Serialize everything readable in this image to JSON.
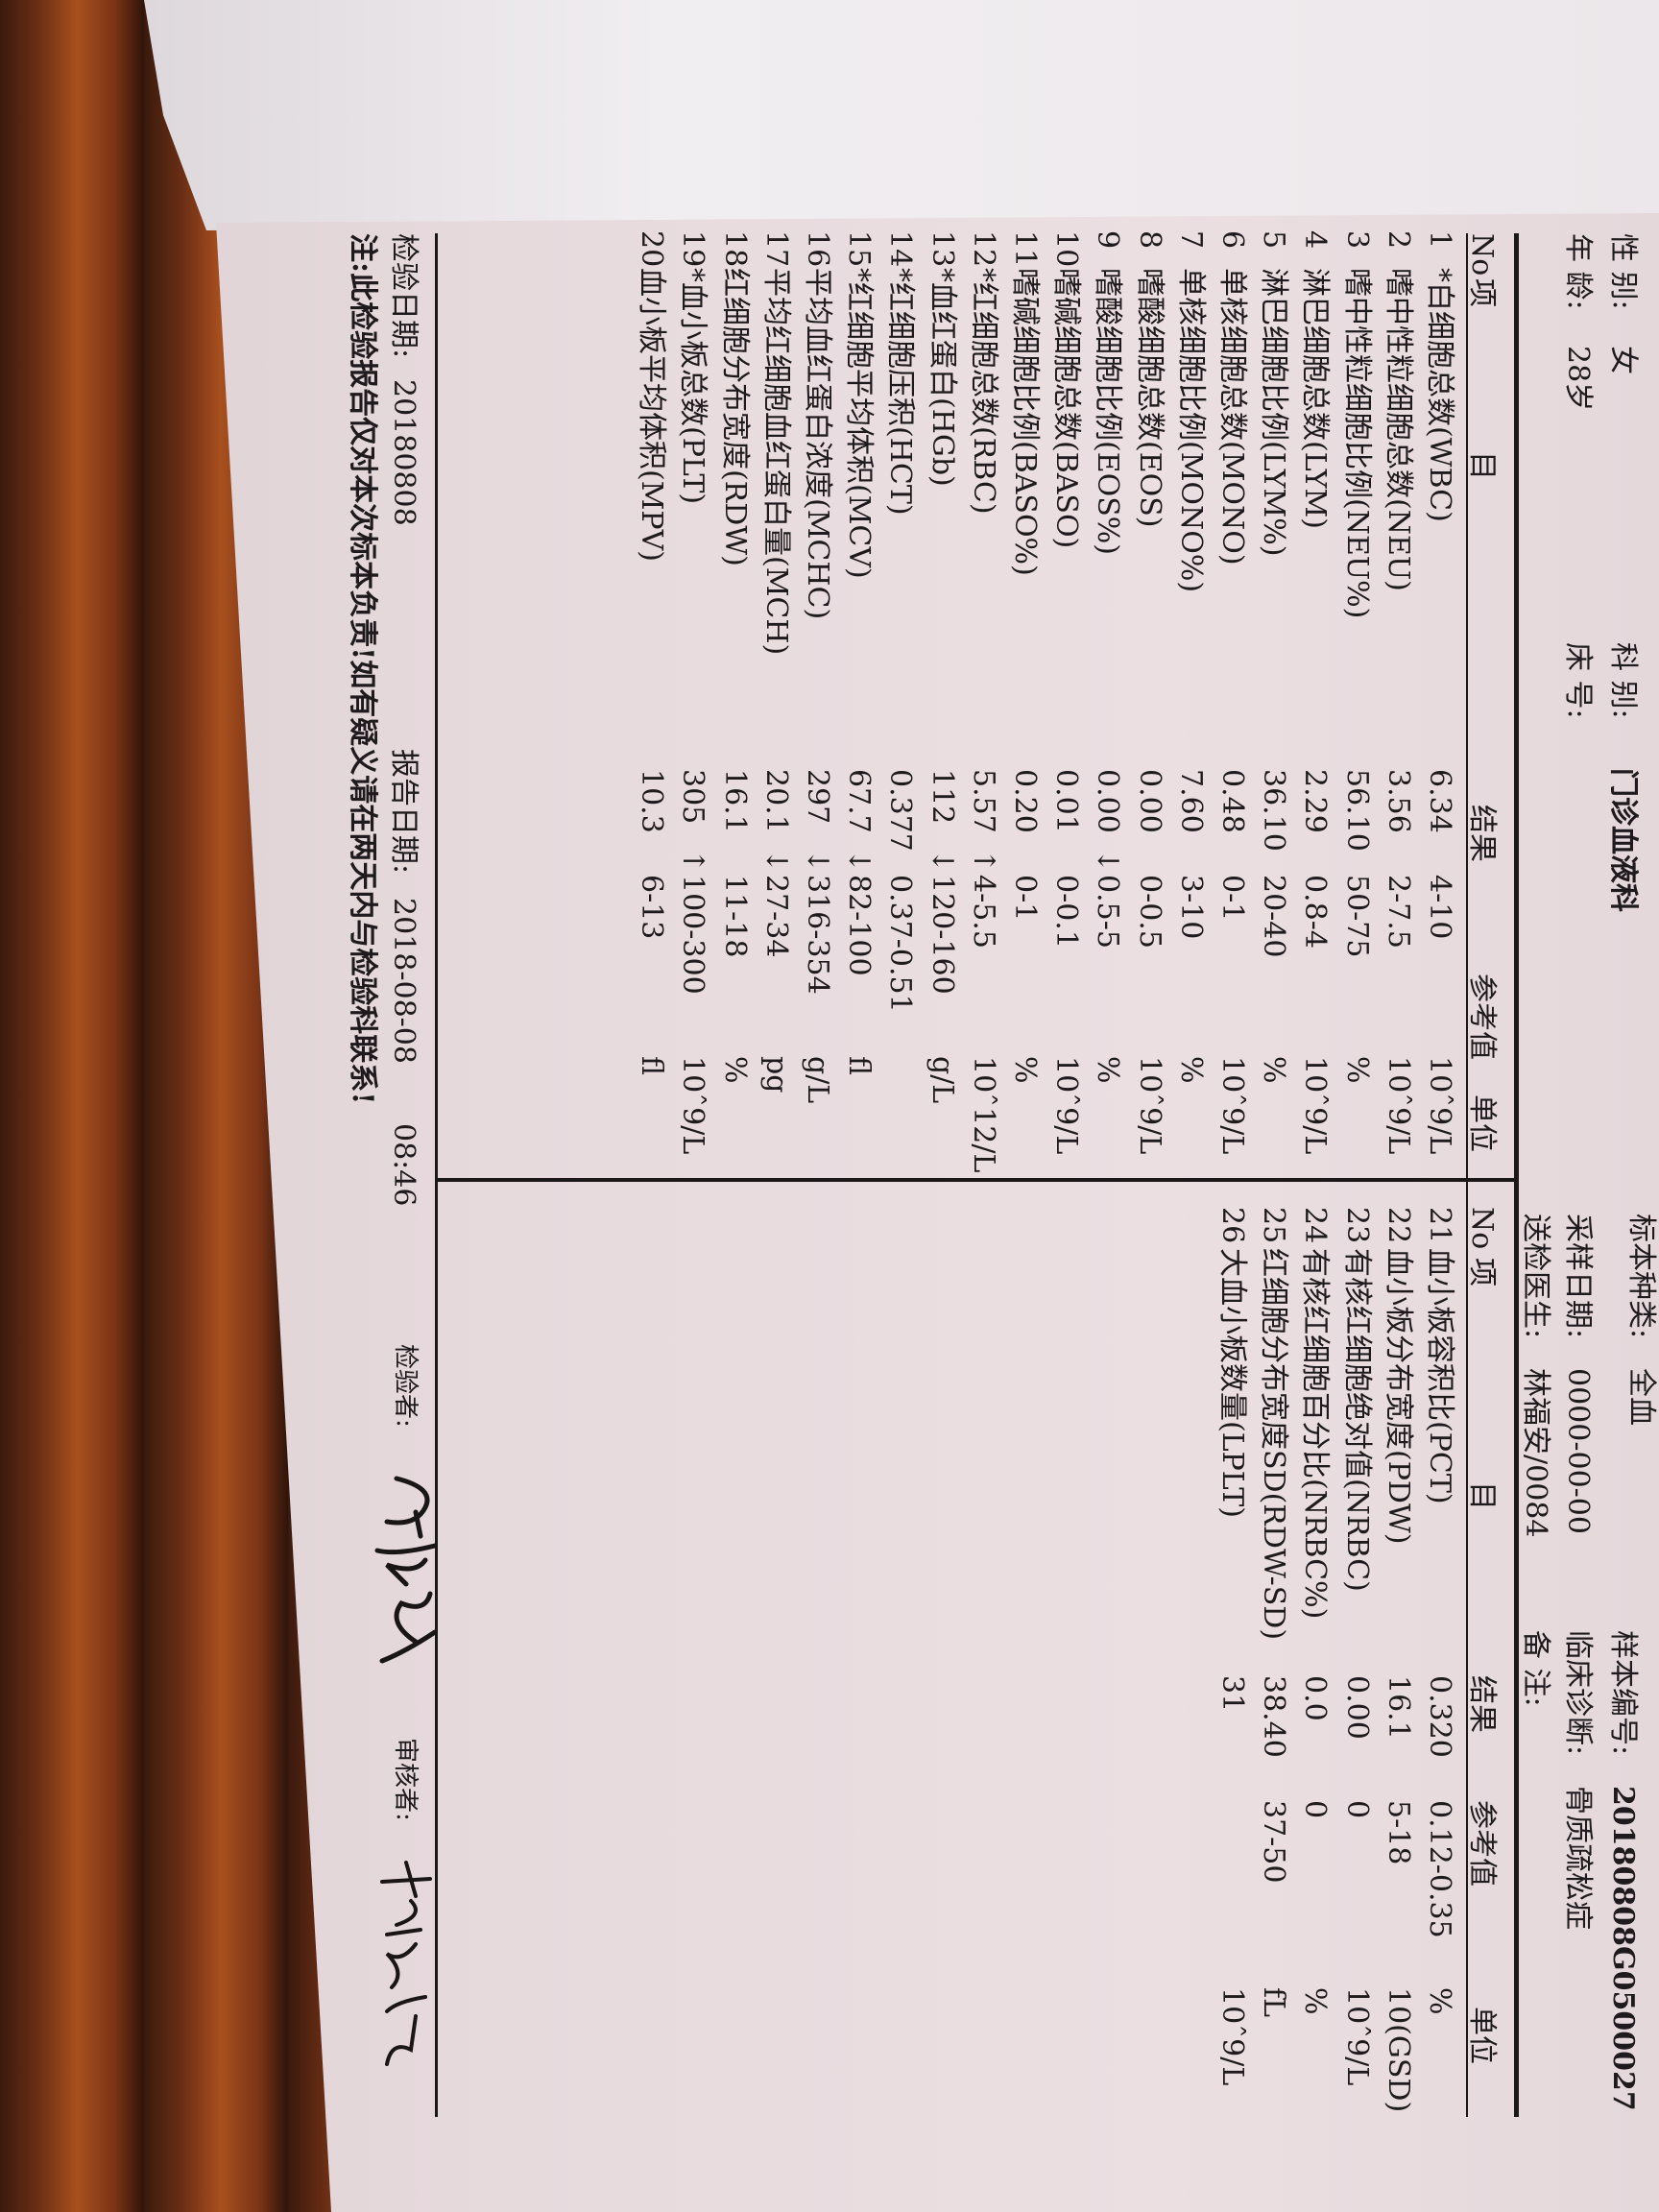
{
  "header": {
    "gender_label": "性 别:",
    "gender": "女",
    "age_label": "年 龄:",
    "age": "28岁",
    "dept_label": "科 别:",
    "dept": "门诊血液科",
    "bed_label": "床 号:",
    "bed": "",
    "specimen_type_label": "标本种类:",
    "specimen_type": "全血",
    "sample_date_label": "采样日期:",
    "sample_date": "0000-00-00",
    "doctor_label": "送检医生:",
    "doctor": "林福安/0084",
    "sample_no_label": "样本编号:",
    "sample_no": "20180808G0500027",
    "diagnosis_label": "临床诊断:",
    "diagnosis": "骨质疏松症",
    "remark_label": "备 注:",
    "remark": ""
  },
  "columns": {
    "no": "No",
    "item_a": "项",
    "item_b": "目",
    "result": "结果",
    "reference": "参考值",
    "unit": "单位"
  },
  "left_rows": [
    {
      "no": "1",
      "name": "*白细胞总数(WBC)",
      "result": "6.34",
      "flag": "",
      "ref": "4-10",
      "unit": "10ˆ9/L"
    },
    {
      "no": "2",
      "name": "嗜中性粒细胞总数(NEU)",
      "result": "3.56",
      "flag": "",
      "ref": "2-7.5",
      "unit": "10ˆ9/L"
    },
    {
      "no": "3",
      "name": "嗜中性粒细胞比例(NEU%)",
      "result": "56.10",
      "flag": "",
      "ref": "50-75",
      "unit": "%"
    },
    {
      "no": "4",
      "name": "淋巴细胞总数(LYM)",
      "result": "2.29",
      "flag": "",
      "ref": "0.8-4",
      "unit": "10ˆ9/L"
    },
    {
      "no": "5",
      "name": "淋巴细胞比例(LYM%)",
      "result": "36.10",
      "flag": "",
      "ref": "20-40",
      "unit": "%"
    },
    {
      "no": "6",
      "name": "单核细胞总数(MONO)",
      "result": "0.48",
      "flag": "",
      "ref": "0-1",
      "unit": "10ˆ9/L"
    },
    {
      "no": "7",
      "name": "单核细胞比例(MONO%)",
      "result": "7.60",
      "flag": "",
      "ref": "3-10",
      "unit": "%"
    },
    {
      "no": "8",
      "name": "嗜酸细胞总数(EOS)",
      "result": "0.00",
      "flag": "",
      "ref": "0-0.5",
      "unit": "10ˆ9/L"
    },
    {
      "no": "9",
      "name": "嗜酸细胞比例(EOS%)",
      "result": "0.00",
      "flag": "↓",
      "ref": "0.5-5",
      "unit": "%"
    },
    {
      "no": "10",
      "name": "嗜碱细胞总数(BASO)",
      "result": "0.01",
      "flag": "",
      "ref": "0-0.1",
      "unit": "10ˆ9/L"
    },
    {
      "no": "11",
      "name": "嗜碱细胞比例(BASO%)",
      "result": "0.20",
      "flag": "",
      "ref": "0-1",
      "unit": "%"
    },
    {
      "no": "12",
      "name": "*红细胞总数(RBC)",
      "result": "5.57",
      "flag": "↑",
      "ref": "4-5.5",
      "unit": "10ˆ12/L"
    },
    {
      "no": "13",
      "name": "*血红蛋白(HGb)",
      "result": "112",
      "flag": "↓",
      "ref": "120-160",
      "unit": "g/L"
    },
    {
      "no": "14",
      "name": "*红细胞压积(HCT)",
      "result": "0.377",
      "flag": "",
      "ref": "0.37-0.51",
      "unit": ""
    },
    {
      "no": "15",
      "name": "*红细胞平均体积(MCV)",
      "result": "67.7",
      "flag": "↓",
      "ref": "82-100",
      "unit": "fl"
    },
    {
      "no": "16",
      "name": "平均血红蛋白浓度(MCHC)",
      "result": "297",
      "flag": "↓",
      "ref": "316-354",
      "unit": "g/L"
    },
    {
      "no": "17",
      "name": "平均红细胞血红蛋白量(MCH)",
      "result": "20.1",
      "flag": "↓",
      "ref": "27-34",
      "unit": "pg"
    },
    {
      "no": "18",
      "name": "红细胞分布宽度(RDW)",
      "result": "16.1",
      "flag": "",
      "ref": "11-18",
      "unit": "%"
    },
    {
      "no": "19",
      "name": "*血小板总数(PLT)",
      "result": "305",
      "flag": "↑",
      "ref": "100-300",
      "unit": "10ˆ9/L"
    },
    {
      "no": "20",
      "name": "血小板平均体积(MPV)",
      "result": "10.3",
      "flag": "",
      "ref": "6-13",
      "unit": "fl"
    }
  ],
  "right_rows": [
    {
      "no": "21",
      "name": "血小板容积比(PCT)",
      "result": "0.320",
      "ref": "0.12-0.35",
      "unit": "%"
    },
    {
      "no": "22",
      "name": "血小板分布宽度(PDW)",
      "result": "16.1",
      "ref": "5-18",
      "unit": "10(GSD)"
    },
    {
      "no": "23",
      "name": "有核红细胞绝对值(NRBC)",
      "result": "0.00",
      "ref": "0",
      "unit": "10ˆ9/L"
    },
    {
      "no": "24",
      "name": "有核红细胞百分比(NRBC%)",
      "result": "0.0",
      "ref": "0",
      "unit": "%"
    },
    {
      "no": "25",
      "name": "红细胞分布宽度SD(RDW-SD)",
      "result": "38.40",
      "ref": "37-50",
      "unit": "fL"
    },
    {
      "no": "26",
      "name": "大血小板数量(LPLT)",
      "result": "31",
      "ref": "",
      "unit": "10ˆ9/L"
    }
  ],
  "footer": {
    "test_date_label": "检验日期:",
    "test_date": "20180808",
    "report_date_label": "报告日期:",
    "report_date": "2018-08-08",
    "report_time": "08:46",
    "tester_label": "检验者:",
    "reviewer_label": "审核者:",
    "note": "注:此检验报告仅对本次标本负责!如有疑义请在两天内与检验科联系!"
  }
}
